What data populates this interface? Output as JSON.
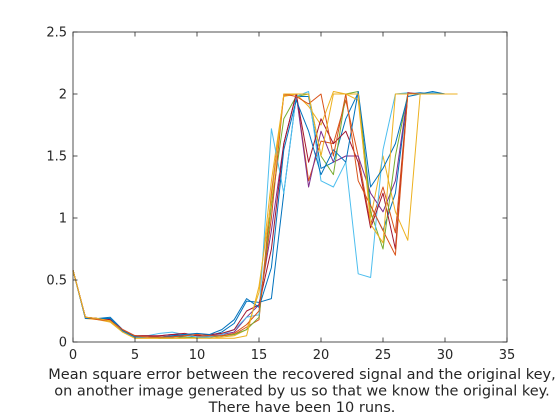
{
  "chart_data": {
    "type": "line",
    "title": "",
    "xlabel": "Mean square error between the recovered signal and the original key,",
    "xlabel_lines": [
      "Mean square error between the recovered signal and the original key,",
      "on another image generated by us so that we know the original key.",
      "There have been 10 runs."
    ],
    "ylabel": "",
    "xlim": [
      0,
      35
    ],
    "ylim": [
      0,
      2.5
    ],
    "xticks": [
      0,
      5,
      10,
      15,
      20,
      25,
      30,
      35
    ],
    "yticks": [
      0,
      0.5,
      1,
      1.5,
      2,
      2.5
    ],
    "grid": false,
    "legend": "none",
    "x": [
      0,
      1,
      2,
      3,
      4,
      5,
      6,
      7,
      8,
      9,
      10,
      11,
      12,
      13,
      14,
      15,
      16,
      17,
      18,
      19,
      20,
      21,
      22,
      23,
      24,
      25,
      26,
      27,
      28,
      29,
      30,
      31
    ],
    "series": [
      {
        "color": "#0072bd",
        "values": [
          0.58,
          0.19,
          0.19,
          0.2,
          0.1,
          0.04,
          0.04,
          0.03,
          0.05,
          0.04,
          0.04,
          0.05,
          0.08,
          0.15,
          0.33,
          0.32,
          0.35,
          1.2,
          1.98,
          1.98,
          1.4,
          1.45,
          1.8,
          2.01,
          1.1,
          0.9,
          1.2,
          2.0,
          2.01,
          2.0,
          2.0,
          2.0
        ]
      },
      {
        "color": "#d95319",
        "values": [
          0.58,
          0.2,
          0.19,
          0.17,
          0.09,
          0.05,
          0.05,
          0.04,
          0.04,
          0.06,
          0.05,
          0.04,
          0.05,
          0.06,
          0.12,
          0.18,
          1.2,
          1.99,
          2.0,
          1.3,
          1.62,
          1.6,
          1.95,
          1.5,
          0.95,
          1.25,
          0.88,
          2.0,
          2.0,
          2.0,
          2.0,
          2.0
        ]
      },
      {
        "color": "#edb120",
        "values": [
          0.58,
          0.19,
          0.18,
          0.16,
          0.08,
          0.03,
          0.03,
          0.03,
          0.03,
          0.03,
          0.04,
          0.03,
          0.04,
          0.05,
          0.1,
          0.4,
          1.3,
          1.98,
          2.0,
          1.9,
          1.75,
          2.02,
          2.0,
          1.95,
          1.0,
          1.5,
          1.05,
          0.82,
          2.0,
          2.0,
          2.0,
          2.0
        ]
      },
      {
        "color": "#7e2f8e",
        "values": [
          0.58,
          0.2,
          0.19,
          0.18,
          0.1,
          0.05,
          0.04,
          0.05,
          0.06,
          0.05,
          0.06,
          0.05,
          0.06,
          0.08,
          0.2,
          0.3,
          0.9,
          1.6,
          2.0,
          1.25,
          1.7,
          1.45,
          1.5,
          1.5,
          1.2,
          1.05,
          1.3,
          2.0,
          2.0,
          2.01,
          2.0,
          2.0
        ]
      },
      {
        "color": "#77ac30",
        "values": [
          0.58,
          0.2,
          0.19,
          0.17,
          0.09,
          0.04,
          0.04,
          0.03,
          0.03,
          0.04,
          0.03,
          0.04,
          0.05,
          0.06,
          0.1,
          0.2,
          1.1,
          1.8,
          1.98,
          2.0,
          1.5,
          1.35,
          2.0,
          2.02,
          1.05,
          0.75,
          1.5,
          2.0,
          2.0,
          2.0,
          2.0,
          2.0
        ]
      },
      {
        "color": "#4dbeee",
        "values": [
          0.58,
          0.19,
          0.19,
          0.18,
          0.08,
          0.04,
          0.05,
          0.07,
          0.08,
          0.06,
          0.04,
          0.04,
          0.06,
          0.1,
          0.2,
          0.22,
          1.72,
          1.2,
          1.98,
          2.02,
          1.3,
          1.25,
          1.45,
          0.55,
          0.52,
          1.55,
          2.0,
          2.01,
          2.0,
          2.01,
          2.0,
          2.0
        ]
      },
      {
        "color": "#a2142f",
        "values": [
          0.58,
          0.2,
          0.19,
          0.18,
          0.1,
          0.05,
          0.05,
          0.05,
          0.06,
          0.07,
          0.05,
          0.06,
          0.07,
          0.1,
          0.25,
          0.3,
          0.75,
          1.6,
          2.0,
          1.45,
          1.8,
          1.6,
          1.7,
          1.45,
          0.92,
          1.2,
          0.75,
          2.01,
          2.0,
          2.0,
          2.0,
          2.0
        ]
      },
      {
        "color": "#0072bd",
        "values": [
          0.58,
          0.19,
          0.19,
          0.19,
          0.09,
          0.04,
          0.04,
          0.04,
          0.05,
          0.06,
          0.07,
          0.06,
          0.1,
          0.18,
          0.35,
          0.28,
          0.6,
          1.55,
          1.95,
          1.7,
          1.35,
          1.55,
          1.45,
          2.02,
          1.25,
          1.4,
          1.6,
          1.98,
          2.0,
          2.02,
          2.0,
          2.0
        ]
      },
      {
        "color": "#d95319",
        "values": [
          0.58,
          0.2,
          0.18,
          0.17,
          0.1,
          0.05,
          0.04,
          0.04,
          0.04,
          0.05,
          0.06,
          0.05,
          0.05,
          0.07,
          0.14,
          0.25,
          1.0,
          2.0,
          1.98,
          1.92,
          2.0,
          1.5,
          2.0,
          1.3,
          1.1,
          0.9,
          0.7,
          2.0,
          2.0,
          2.0,
          2.0,
          2.0
        ]
      },
      {
        "color": "#edb120",
        "values": [
          0.58,
          0.2,
          0.19,
          0.17,
          0.08,
          0.03,
          0.03,
          0.03,
          0.03,
          0.03,
          0.03,
          0.03,
          0.03,
          0.03,
          0.05,
          0.45,
          1.15,
          2.0,
          2.0,
          2.0,
          1.5,
          2.0,
          2.0,
          2.0,
          0.95,
          0.8,
          2.0,
          2.0,
          2.0,
          2.0,
          2.0,
          2.0
        ]
      }
    ]
  }
}
